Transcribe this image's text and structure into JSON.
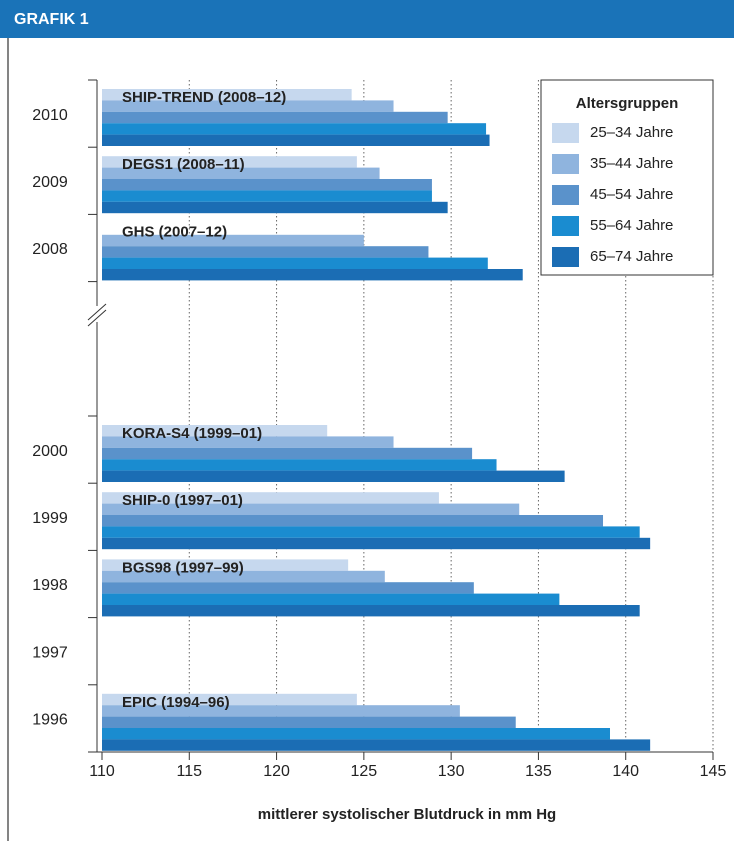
{
  "chart_data": {
    "type": "hbar",
    "title": "GRAFIK 1",
    "categories": [
      "2010",
      "2009",
      "2008",
      null,
      "2000",
      "1999",
      "1998",
      "1997",
      "1996"
    ],
    "study_labels": [
      "SHIP-TREND (2008–12)",
      "DEGS1 (2008–11)",
      "GHS (2007–12)",
      null,
      "KORA-S4 (1999–01)",
      "SHIP-0 (1997–01)",
      "BGS98 (1997–99)",
      null,
      "EPIC (1994–96)"
    ],
    "legend_title": "Altersgruppen",
    "legend": "upper right",
    "series": [
      {
        "name": "25–34 Jahre",
        "color": "#c6d8ee",
        "values": [
          124.3,
          124.6,
          null,
          null,
          122.9,
          129.3,
          124.1,
          null,
          124.6
        ]
      },
      {
        "name": "35–44 Jahre",
        "color": "#8fb4de",
        "values": [
          126.7,
          125.9,
          125.0,
          null,
          126.7,
          133.9,
          126.2,
          null,
          130.5
        ]
      },
      {
        "name": "45–54 Jahre",
        "color": "#5a92cb",
        "values": [
          129.8,
          128.9,
          128.7,
          null,
          131.2,
          138.7,
          131.3,
          null,
          133.7
        ]
      },
      {
        "name": "55–64 Jahre",
        "color": "#1a8cd0",
        "values": [
          132.0,
          128.9,
          132.1,
          null,
          132.6,
          140.8,
          136.2,
          null,
          139.1
        ]
      },
      {
        "name": "65–74 Jahre",
        "color": "#1b6db4",
        "values": [
          132.2,
          129.8,
          134.1,
          null,
          136.5,
          141.4,
          140.8,
          null,
          141.4
        ]
      }
    ],
    "xlabel": "mittlerer systolischer Blutdruck in mm Hg",
    "xlim": [
      110,
      145
    ],
    "xticks": [
      110,
      115,
      120,
      125,
      130,
      135,
      140,
      145
    ],
    "grid": true
  }
}
